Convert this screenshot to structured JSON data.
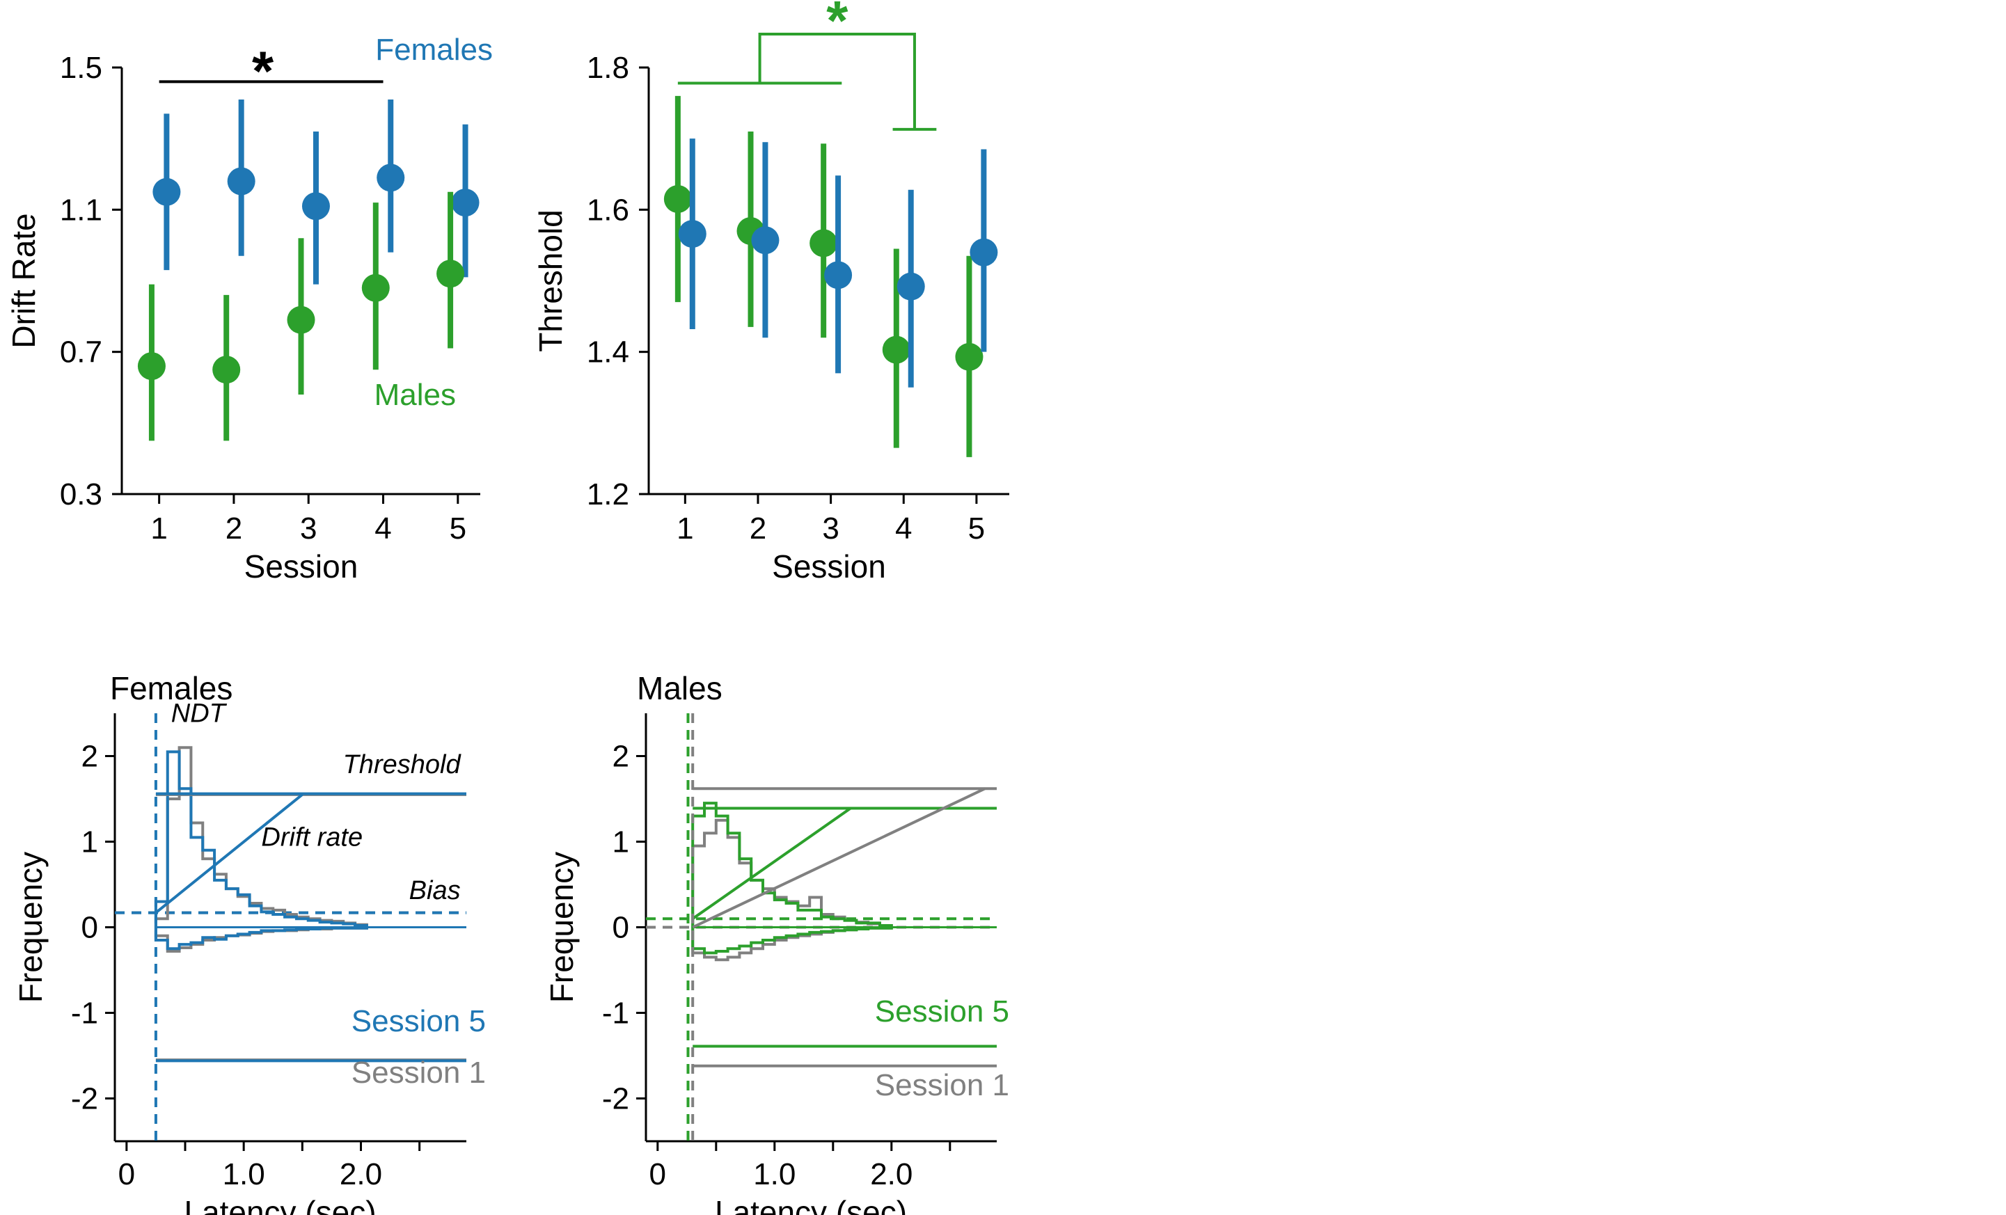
{
  "colors": {
    "females": "#1f77b4",
    "males": "#2ca02c",
    "session1": "#808080",
    "black": "#000000"
  },
  "chart_data": [
    {
      "id": "drift",
      "type": "scatter",
      "error_bars": true,
      "xlabel": "Session",
      "ylabel": "Drift Rate",
      "x": [
        1,
        2,
        3,
        4,
        5
      ],
      "xticks": [
        1,
        2,
        3,
        4,
        5
      ],
      "ylim": [
        0.3,
        1.5
      ],
      "yticks": [
        0.3,
        0.7,
        1.1,
        1.5
      ],
      "ytick_labels": [
        "0.3",
        "0.7",
        "1.1",
        "1.5"
      ],
      "series": [
        {
          "name": "Females",
          "color_key": "females",
          "offset": 0.1,
          "values": [
            1.15,
            1.18,
            1.11,
            1.19,
            1.12
          ],
          "lower": [
            0.93,
            0.97,
            0.89,
            0.98,
            0.91
          ],
          "upper": [
            1.37,
            1.41,
            1.32,
            1.41,
            1.34
          ]
        },
        {
          "name": "Males",
          "color_key": "males",
          "offset": -0.1,
          "values": [
            0.66,
            0.65,
            0.79,
            0.88,
            0.92
          ],
          "lower": [
            0.45,
            0.45,
            0.58,
            0.65,
            0.71
          ],
          "upper": [
            0.89,
            0.86,
            1.02,
            1.12,
            1.15
          ]
        }
      ],
      "legend": [
        {
          "text": "Females",
          "color_key": "females",
          "position": "top-right"
        },
        {
          "text": "Males",
          "color_key": "males",
          "position": "middle-right"
        }
      ],
      "significance": [
        {
          "label": "*",
          "from_x": 1,
          "to_x": 4,
          "y": 1.46,
          "color_key": "black"
        }
      ]
    },
    {
      "id": "threshold",
      "type": "scatter",
      "error_bars": true,
      "xlabel": "Session",
      "ylabel": "Threshold",
      "x": [
        1,
        2,
        3,
        4,
        5
      ],
      "xticks": [
        1,
        2,
        3,
        4,
        5
      ],
      "ylim": [
        1.2,
        1.8
      ],
      "yticks": [
        1.2,
        1.4,
        1.6,
        1.8
      ],
      "ytick_labels": [
        "1.2",
        "1.4",
        "1.6",
        "1.8"
      ],
      "series": [
        {
          "name": "Males",
          "color_key": "males",
          "offset": -0.1,
          "values": [
            1.615,
            1.57,
            1.553,
            1.403,
            1.393
          ],
          "lower": [
            1.47,
            1.435,
            1.42,
            1.265,
            1.252
          ],
          "upper": [
            1.76,
            1.71,
            1.693,
            1.545,
            1.535
          ]
        },
        {
          "name": "Females",
          "color_key": "females",
          "offset": 0.1,
          "values": [
            1.566,
            1.557,
            1.508,
            1.492,
            1.54
          ],
          "lower": [
            1.432,
            1.42,
            1.37,
            1.35,
            1.4
          ],
          "upper": [
            1.7,
            1.695,
            1.648,
            1.628,
            1.685
          ]
        }
      ],
      "significance": [
        {
          "label": "*",
          "color_key": "males",
          "group1": [
            0.9,
            3.15
          ],
          "group1_y": 1.778,
          "group2": [
            3.85,
            4.45
          ],
          "group2_y": 1.713,
          "top_y": 1.847
        }
      ]
    },
    {
      "id": "females_ddm",
      "type": "line",
      "title": "Females",
      "xlabel": "Latency (sec)",
      "ylabel": "Frequency",
      "xlim": [
        -0.1,
        2.9
      ],
      "ylim": [
        -2.5,
        2.5
      ],
      "xticks": [
        0,
        0.5,
        1.0,
        1.5,
        2.0,
        2.5
      ],
      "xtick_labels": [
        "0",
        "",
        "1.0",
        "",
        "2.0",
        ""
      ],
      "yticks": [
        -2,
        -1,
        0,
        1,
        2
      ],
      "ytick_labels": [
        "-2",
        "-1",
        "0",
        "1",
        "2"
      ],
      "ndt": [
        {
          "x": 0.25,
          "color_key": "females"
        }
      ],
      "bias": [
        {
          "y": 0.17,
          "color_key": "session1"
        },
        {
          "y": 0.17,
          "color_key": "females"
        }
      ],
      "thresholds": [
        {
          "x0": 0.25,
          "upper": 1.55,
          "lower": -1.55,
          "color_key": "session1"
        },
        {
          "x0": 0.25,
          "upper": 1.56,
          "lower": -1.56,
          "color_key": "females"
        }
      ],
      "drift_lines": [
        {
          "from": [
            0.25,
            0.17
          ],
          "to": [
            1.5,
            1.55
          ],
          "color_key": "females"
        }
      ],
      "histograms": [
        {
          "name": "Session 1",
          "color_key": "session1",
          "edges": [
            0.25,
            0.35,
            0.45,
            0.55,
            0.65,
            0.75,
            0.85,
            0.95,
            1.05,
            1.15,
            1.25,
            1.35,
            1.45,
            1.55,
            1.65,
            1.75,
            1.85,
            1.95,
            2.05
          ],
          "upper": [
            0.1,
            1.5,
            2.1,
            1.22,
            0.8,
            0.62,
            0.45,
            0.36,
            0.28,
            0.22,
            0.2,
            0.15,
            0.12,
            0.1,
            0.08,
            0.07,
            0.05,
            0.03
          ],
          "lower": [
            -0.1,
            -0.28,
            -0.24,
            -0.2,
            -0.15,
            -0.12,
            -0.1,
            -0.09,
            -0.07,
            -0.05,
            -0.04,
            -0.04,
            -0.03,
            -0.02,
            -0.02,
            -0.01,
            -0.01,
            -0.01
          ]
        },
        {
          "name": "Session 5",
          "color_key": "females",
          "edges": [
            0.25,
            0.35,
            0.45,
            0.55,
            0.65,
            0.75,
            0.85,
            0.95,
            1.05,
            1.15,
            1.25,
            1.35,
            1.45,
            1.55,
            1.65,
            1.75,
            1.85,
            1.95,
            2.05
          ],
          "upper": [
            0.3,
            2.05,
            1.62,
            1.05,
            0.9,
            0.55,
            0.45,
            0.38,
            0.25,
            0.18,
            0.15,
            0.12,
            0.1,
            0.08,
            0.06,
            0.05,
            0.04,
            0.02
          ],
          "lower": [
            -0.15,
            -0.25,
            -0.2,
            -0.18,
            -0.12,
            -0.14,
            -0.1,
            -0.08,
            -0.06,
            -0.04,
            -0.04,
            -0.03,
            -0.02,
            -0.02,
            -0.01,
            -0.01,
            -0.01,
            -0.01
          ]
        }
      ],
      "annotations": [
        {
          "text": "NDT",
          "x": 0.38,
          "y": 2.4
        },
        {
          "text": "Threshold",
          "x": 2.85,
          "y": 1.8
        },
        {
          "text": "Drift rate",
          "x": 1.15,
          "y": 0.95
        },
        {
          "text": "Bias",
          "x": 2.85,
          "y": 0.33
        }
      ],
      "legend": [
        {
          "text": "Session 5",
          "color_key": "females",
          "position": "lower-right"
        },
        {
          "text": "Session 1",
          "color_key": "session1",
          "position": "lower-right"
        }
      ]
    },
    {
      "id": "males_ddm",
      "type": "line",
      "title": "Males",
      "xlabel": "Latency (sec)",
      "ylabel": "Frequency",
      "xlim": [
        -0.1,
        2.9
      ],
      "ylim": [
        -2.5,
        2.5
      ],
      "xticks": [
        0,
        0.5,
        1.0,
        1.5,
        2.0,
        2.5
      ],
      "xtick_labels": [
        "0",
        "",
        "1.0",
        "",
        "2.0",
        ""
      ],
      "yticks": [
        -2,
        -1,
        0,
        1,
        2
      ],
      "ytick_labels": [
        "-2",
        "-1",
        "0",
        "1",
        "2"
      ],
      "ndt": [
        {
          "x": 0.3,
          "color_key": "session1"
        },
        {
          "x": 0.26,
          "color_key": "males"
        }
      ],
      "bias": [
        {
          "y": 0.0,
          "color_key": "session1"
        },
        {
          "y": 0.1,
          "color_key": "males"
        }
      ],
      "thresholds": [
        {
          "x0": 0.3,
          "upper": 1.62,
          "lower": -1.62,
          "color_key": "session1"
        },
        {
          "x0": 0.3,
          "upper": 1.39,
          "lower": -1.39,
          "color_key": "males"
        }
      ],
      "drift_lines": [
        {
          "from": [
            0.3,
            0.0
          ],
          "to": [
            2.8,
            1.62
          ],
          "color_key": "session1"
        },
        {
          "from": [
            0.3,
            0.1
          ],
          "to": [
            1.65,
            1.39
          ],
          "color_key": "males"
        }
      ],
      "histograms": [
        {
          "name": "Session 1",
          "color_key": "session1",
          "edges": [
            0.3,
            0.4,
            0.5,
            0.6,
            0.7,
            0.8,
            0.9,
            1.0,
            1.1,
            1.2,
            1.3,
            1.4,
            1.5,
            1.6,
            1.7,
            1.8,
            1.9,
            2.0
          ],
          "upper": [
            0.95,
            1.1,
            1.25,
            1.05,
            0.75,
            0.55,
            0.45,
            0.35,
            0.3,
            0.25,
            0.35,
            0.15,
            0.12,
            0.08,
            0.06,
            0.04,
            0.02
          ],
          "lower": [
            -0.3,
            -0.35,
            -0.38,
            -0.35,
            -0.3,
            -0.25,
            -0.2,
            -0.15,
            -0.12,
            -0.1,
            -0.08,
            -0.06,
            -0.04,
            -0.03,
            -0.02,
            -0.01,
            -0.01
          ]
        },
        {
          "name": "Session 5",
          "color_key": "males",
          "edges": [
            0.3,
            0.4,
            0.5,
            0.6,
            0.7,
            0.8,
            0.9,
            1.0,
            1.1,
            1.2,
            1.3,
            1.4,
            1.5,
            1.6,
            1.7,
            1.8,
            1.9,
            2.0
          ],
          "upper": [
            1.3,
            1.45,
            1.3,
            1.1,
            0.8,
            0.55,
            0.4,
            0.32,
            0.28,
            0.2,
            0.2,
            0.12,
            0.1,
            0.08,
            0.05,
            0.05,
            0.02
          ],
          "lower": [
            -0.25,
            -0.3,
            -0.28,
            -0.25,
            -0.22,
            -0.18,
            -0.15,
            -0.12,
            -0.1,
            -0.08,
            -0.06,
            -0.05,
            -0.04,
            -0.03,
            -0.02,
            -0.01,
            -0.01
          ]
        }
      ],
      "legend": [
        {
          "text": "Session 5",
          "color_key": "males",
          "position": "lower-right"
        },
        {
          "text": "Session 1",
          "color_key": "session1",
          "position": "lower-right"
        }
      ]
    }
  ]
}
